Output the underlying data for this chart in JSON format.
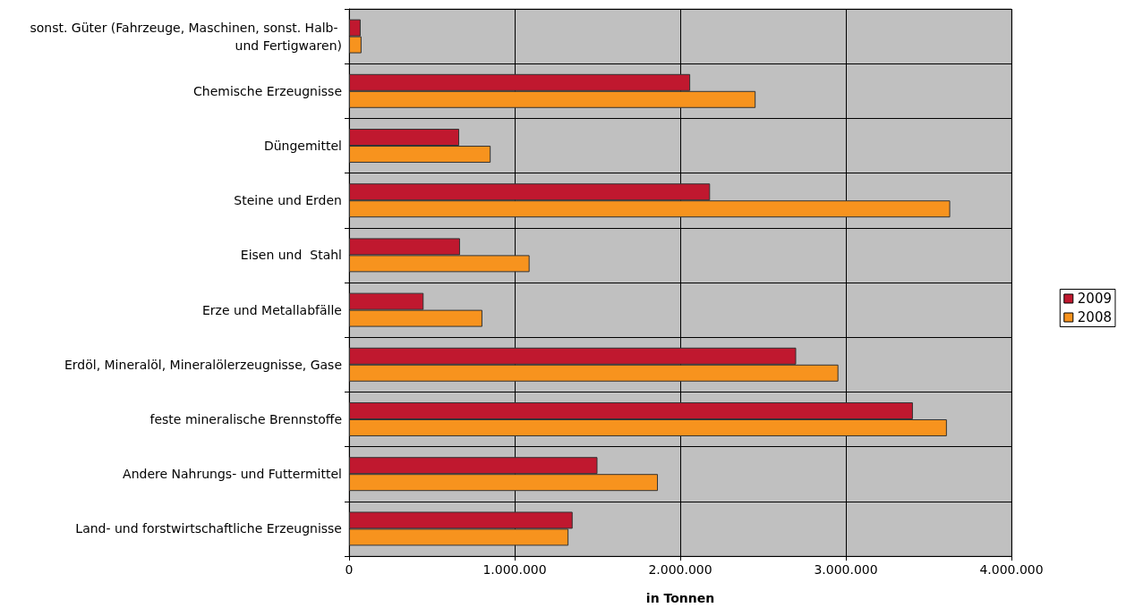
{
  "chart_data": {
    "type": "bar",
    "orientation": "horizontal",
    "xlabel": "in Tonnen",
    "categories": [
      "sonst. Güter (Fahrzeuge, Maschinen, sonst. Halb- und Fertigwaren)",
      "Chemische Erzeugnisse",
      "Düngemittel",
      "Steine und Erden",
      "Eisen und  Stahl",
      "Erze und Metallabfälle",
      "Erdöl, Mineralöl, Mineralölerzeugnisse, Gase",
      "feste mineralische Brennstoffe",
      "Andere Nahrungs- und Futtermittel",
      "Land- und forstwirtschaftliche Erzeugnisse"
    ],
    "series": [
      {
        "name": "2009",
        "color": "#c0182f",
        "values": [
          70000,
          2060000,
          665000,
          2180000,
          670000,
          450000,
          2700000,
          3405000,
          1500000,
          1350000
        ]
      },
      {
        "name": "2008",
        "color": "#f7931e",
        "values": [
          75000,
          2455000,
          855000,
          3630000,
          1090000,
          805000,
          2955000,
          3610000,
          1865000,
          1325000
        ]
      }
    ],
    "xlim": [
      0,
      4000000
    ],
    "xticks": [
      {
        "value": 0,
        "label": "0"
      },
      {
        "value": 1000000,
        "label": "1.000.000"
      },
      {
        "value": 2000000,
        "label": "2.000.000"
      },
      {
        "value": 3000000,
        "label": "3.000.000"
      },
      {
        "value": 4000000,
        "label": "4.000.000"
      }
    ],
    "grid": true,
    "legend": "right"
  }
}
